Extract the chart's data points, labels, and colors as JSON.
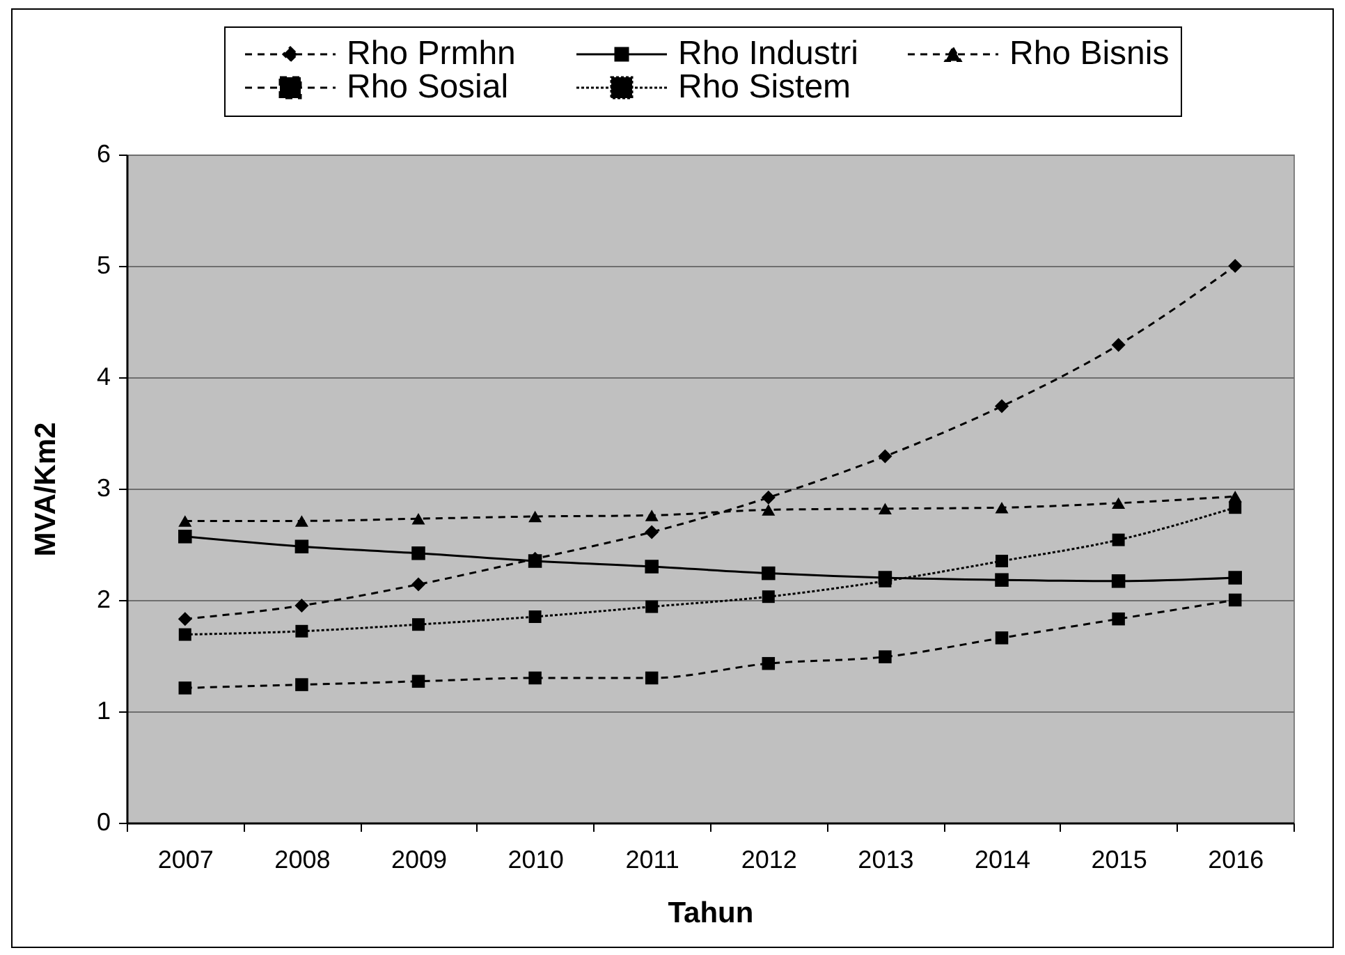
{
  "chart_data": {
    "type": "line",
    "xlabel": "Tahun",
    "ylabel": "MVA/Km2",
    "categories": [
      "2007",
      "2008",
      "2009",
      "2010",
      "2011",
      "2012",
      "2013",
      "2014",
      "2015",
      "2016"
    ],
    "ylim": [
      0,
      6
    ],
    "yticks": [
      0,
      1,
      2,
      3,
      4,
      5,
      6
    ],
    "grid": "y",
    "legend": "top",
    "series": [
      {
        "name": "Rho Prmhn",
        "color": "#000000",
        "marker": "diamond",
        "line_style": "dashed",
        "values": [
          1.83,
          1.95,
          2.14,
          2.37,
          2.61,
          2.92,
          3.29,
          3.74,
          4.29,
          5.0
        ]
      },
      {
        "name": "Rho Industri",
        "color": "#000000",
        "marker": "square",
        "line_style": "solid",
        "values": [
          2.57,
          2.48,
          2.42,
          2.35,
          2.3,
          2.24,
          2.2,
          2.18,
          2.17,
          2.2
        ]
      },
      {
        "name": "Rho Bisnis",
        "color": "#000000",
        "marker": "triangle",
        "line_style": "dashed",
        "values": [
          2.71,
          2.71,
          2.73,
          2.75,
          2.76,
          2.81,
          2.82,
          2.83,
          2.87,
          2.93
        ]
      },
      {
        "name": "Rho Sosial",
        "color": "#000000",
        "marker": "square",
        "line_style": "dashed",
        "values": [
          1.21,
          1.24,
          1.27,
          1.3,
          1.3,
          1.43,
          1.49,
          1.66,
          1.83,
          2.0
        ]
      },
      {
        "name": "Rho Sistem",
        "color": "#000000",
        "marker": "square",
        "line_style": "dotted",
        "values": [
          1.69,
          1.72,
          1.78,
          1.85,
          1.94,
          2.03,
          2.17,
          2.35,
          2.54,
          2.83
        ]
      }
    ]
  }
}
